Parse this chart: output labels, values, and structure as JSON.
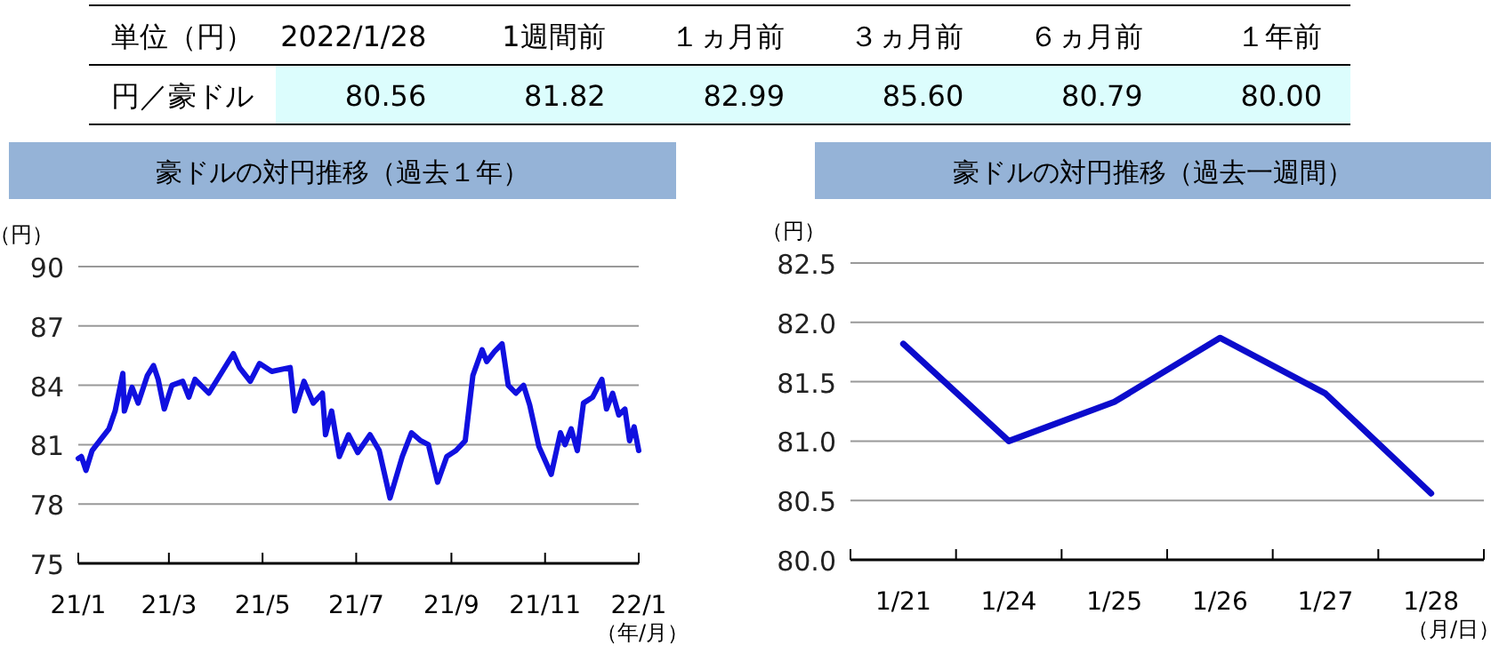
{
  "chart_data": [
    {
      "type": "other",
      "categories": [
        "2022/1/28",
        "1週間前",
        "１ヵ月前",
        "３ヵ月前",
        "６ヵ月前",
        "１年前"
      ],
      "annotations": [
        "単位（円）",
        "円／豪ドル"
      ],
      "value_labels": [
        "80.56",
        "81.82",
        "82.99",
        "85.60",
        "80.79",
        "80.00"
      ]
    },
    {
      "type": "line",
      "title": "豪ドルの対円推移（過去１年）",
      "ylabel": "（円）",
      "xlabel": "（年/月）",
      "grid": "y",
      "xlim": [
        "2021-01-01",
        "2022-01-01"
      ],
      "xticks": [
        {
          "value": "2021-01-01",
          "label": "21/1"
        },
        {
          "value": "2021-03-01",
          "label": "21/3"
        },
        {
          "value": "2021-05-01",
          "label": "21/5"
        },
        {
          "value": "2021-07-01",
          "label": "21/7"
        },
        {
          "value": "2021-09-01",
          "label": "21/9"
        },
        {
          "value": "2021-11-01",
          "label": "21/11"
        },
        {
          "value": "2022-01-01",
          "label": "22/1"
        }
      ],
      "ylim": [
        75,
        90
      ],
      "yticks": [
        75,
        78,
        81,
        84,
        87,
        90
      ],
      "x": [
        "2021-01-01",
        "2021-01-03",
        "2021-01-06",
        "2021-01-10",
        "2021-01-15",
        "2021-01-21",
        "2021-01-25",
        "2021-01-30",
        "2021-01-31",
        "2021-02-05",
        "2021-02-09",
        "2021-02-15",
        "2021-02-19",
        "2021-02-22",
        "2021-02-26",
        "2021-03-03",
        "2021-03-10",
        "2021-03-14",
        "2021-03-18",
        "2021-03-27",
        "2021-04-04",
        "2021-04-12",
        "2021-04-16",
        "2021-04-23",
        "2021-04-29",
        "2021-05-07",
        "2021-05-19",
        "2021-05-22",
        "2021-05-28",
        "2021-06-03",
        "2021-06-09",
        "2021-06-11",
        "2021-06-15",
        "2021-06-20",
        "2021-06-26",
        "2021-07-02",
        "2021-07-10",
        "2021-07-16",
        "2021-07-23",
        "2021-07-31",
        "2021-08-06",
        "2021-08-12",
        "2021-08-17",
        "2021-08-23",
        "2021-08-29",
        "2021-09-04",
        "2021-09-10",
        "2021-09-15",
        "2021-09-21",
        "2021-09-24",
        "2021-09-29",
        "2021-10-04",
        "2021-10-08",
        "2021-10-13",
        "2021-10-18",
        "2021-10-22",
        "2021-10-28",
        "2021-11-05",
        "2021-11-11",
        "2021-11-14",
        "2021-11-18",
        "2021-11-22",
        "2021-11-26",
        "2021-12-02",
        "2021-12-08",
        "2021-12-11",
        "2021-12-15",
        "2021-12-19",
        "2021-12-23",
        "2021-12-26",
        "2021-12-29",
        "2022-01-01"
      ],
      "series": [
        {
          "color": "#1010e0",
          "values": [
            80.3,
            80.4,
            79.7,
            80.7,
            81.2,
            81.8,
            82.7,
            84.6,
            82.7,
            83.9,
            83.1,
            84.5,
            85.0,
            84.3,
            82.8,
            84.0,
            84.2,
            83.4,
            84.3,
            83.6,
            84.6,
            85.6,
            84.9,
            84.2,
            85.1,
            84.7,
            84.9,
            82.7,
            84.2,
            83.1,
            83.6,
            81.5,
            82.7,
            80.4,
            81.5,
            80.6,
            81.5,
            80.7,
            78.3,
            80.4,
            81.6,
            81.2,
            81.0,
            79.1,
            80.4,
            80.7,
            81.2,
            84.5,
            85.8,
            85.2,
            85.7,
            86.1,
            84.0,
            83.6,
            84.0,
            83.0,
            80.9,
            79.5,
            81.6,
            81.0,
            81.8,
            80.7,
            83.1,
            83.4,
            84.3,
            82.8,
            83.6,
            82.5,
            82.8,
            81.2,
            81.9,
            80.7
          ]
        }
      ]
    },
    {
      "type": "line",
      "title": "豪ドルの対円推移（過去一週間）",
      "ylabel": "（円）",
      "xlabel": "（月/日）",
      "grid": "y",
      "categories": [
        "1/21",
        "1/24",
        "1/25",
        "1/26",
        "1/27",
        "1/28"
      ],
      "ylim": [
        80,
        82.5
      ],
      "yticks": [
        {
          "value": 80,
          "label": "80.0"
        },
        {
          "value": 80.5,
          "label": "80.5"
        },
        {
          "value": 81,
          "label": "81.0"
        },
        {
          "value": 81.5,
          "label": "81.5"
        },
        {
          "value": 82,
          "label": "82.0"
        },
        {
          "value": 82.5,
          "label": "82.5"
        }
      ],
      "series": [
        {
          "color": "#0b0bcc",
          "values": [
            81.82,
            81.0,
            81.33,
            81.87,
            81.4,
            80.56
          ]
        }
      ]
    }
  ]
}
